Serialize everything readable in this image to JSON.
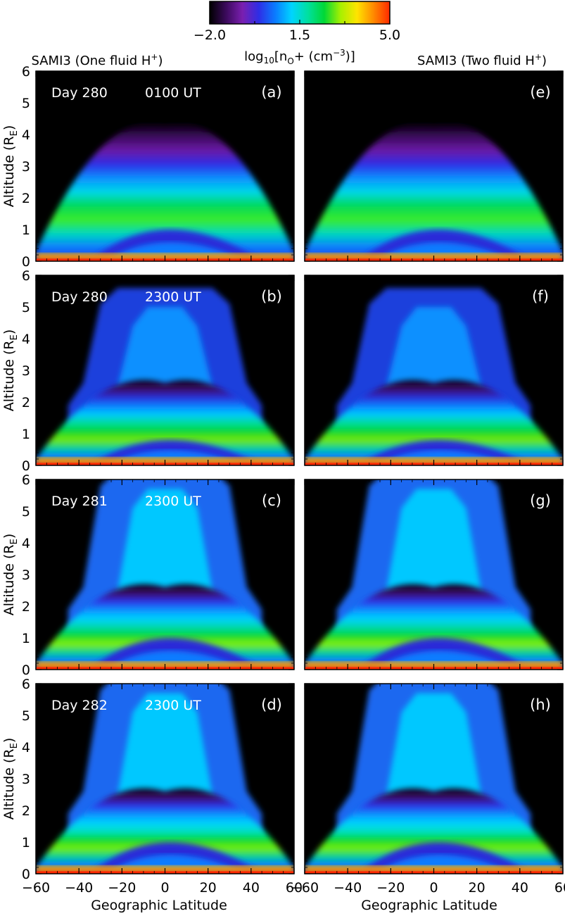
{
  "colorbar": {
    "tick_labels": [
      "−2.0",
      "1.5",
      "5.0"
    ],
    "range": [
      -2.0,
      5.0
    ],
    "colormap": [
      "#000000",
      "#3b0a5c",
      "#7a1fb0",
      "#2e2ee6",
      "#0a7cff",
      "#00d4ff",
      "#00e0a0",
      "#00d836",
      "#a8f000",
      "#ffe400",
      "#ff8a00",
      "#ff2a00"
    ],
    "label_prefix": "log",
    "label_sub": "10",
    "label_main": "[n",
    "label_species": "O",
    "label_plus": "+",
    "label_units": " (cm",
    "label_exp": "−3",
    "label_close": ")]"
  },
  "headers": {
    "left_main": "SAMI3 (One fluid H",
    "left_sup": "+",
    "left_close": ")",
    "right_main": "SAMI3 (Two fluid H",
    "right_sup": "+",
    "right_close": ")"
  },
  "axes": {
    "ylabel_main": "Altitude (R",
    "ylabel_sub": "E",
    "ylabel_close": ")",
    "xlabel": "Geographic Latitude",
    "yticks": [
      "0",
      "1",
      "2",
      "3",
      "4",
      "5",
      "6"
    ],
    "xticks_left": [
      "−60",
      "−40",
      "−20",
      "0",
      "20",
      "40",
      "60"
    ],
    "xticks_right": [
      "−60",
      "−40",
      "−20",
      "0",
      "20",
      "40",
      "60"
    ]
  },
  "chart_data": {
    "type": "heatmap",
    "quantity": "log10 O+ density (cm^-3)",
    "x_range": [
      -60,
      60
    ],
    "y_range": [
      0,
      6
    ],
    "value_range": [
      -2.0,
      5.0
    ],
    "panels": [
      {
        "id": "a",
        "column": "one-fluid",
        "day": "Day 280",
        "time": "0100 UT",
        "tag": "(a)",
        "state": 0
      },
      {
        "id": "b",
        "column": "one-fluid",
        "day": "Day 280",
        "time": "2300 UT",
        "tag": "(b)",
        "state": 1
      },
      {
        "id": "c",
        "column": "one-fluid",
        "day": "Day 281",
        "time": "2300 UT",
        "tag": "(c)",
        "state": 2
      },
      {
        "id": "d",
        "column": "one-fluid",
        "day": "Day 282",
        "time": "2300 UT",
        "tag": "(d)",
        "state": 3
      },
      {
        "id": "e",
        "column": "two-fluid",
        "day": "",
        "time": "",
        "tag": "(e)",
        "state": 0
      },
      {
        "id": "f",
        "column": "two-fluid",
        "day": "",
        "time": "",
        "tag": "(f)",
        "state": 1
      },
      {
        "id": "g",
        "column": "two-fluid",
        "day": "",
        "time": "",
        "tag": "(g)",
        "state": 2
      },
      {
        "id": "h",
        "column": "two-fluid",
        "day": "",
        "time": "",
        "tag": "(h)",
        "state": 3
      }
    ]
  }
}
